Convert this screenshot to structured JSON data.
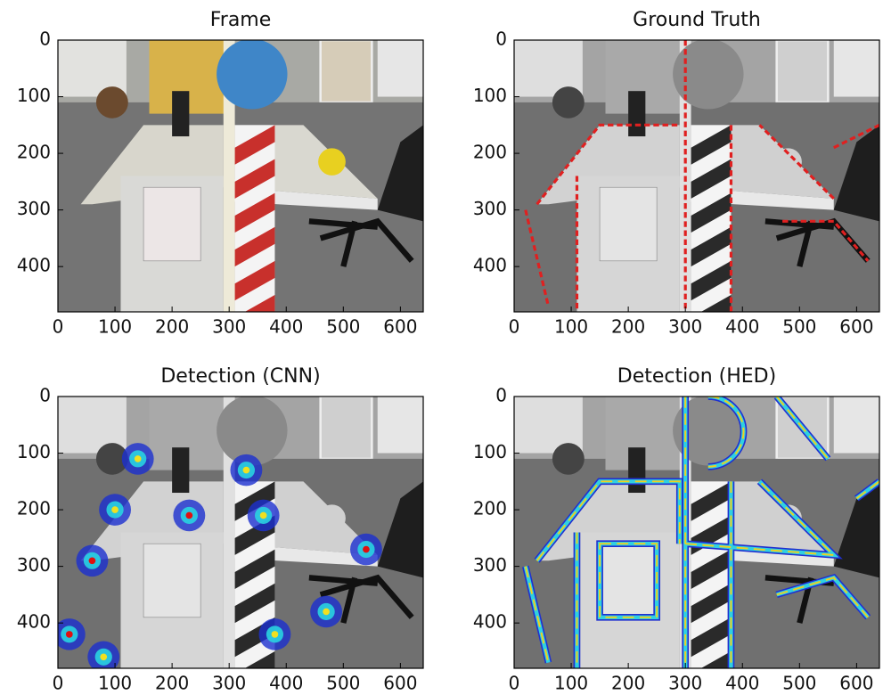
{
  "chart_data": [
    {
      "type": "image",
      "title": "Frame",
      "style": "color",
      "xlim": [
        0,
        640
      ],
      "ylim": [
        480,
        0
      ],
      "xticks": [
        0,
        100,
        200,
        300,
        400,
        500,
        600
      ],
      "yticks": [
        0,
        100,
        200,
        300,
        400
      ]
    },
    {
      "type": "image",
      "title": "Ground Truth",
      "style": "truth",
      "xlim": [
        0,
        640
      ],
      "ylim": [
        480,
        0
      ],
      "xticks": [
        0,
        100,
        200,
        300,
        400,
        500,
        600
      ],
      "yticks": [
        0,
        100,
        200,
        300,
        400
      ]
    },
    {
      "type": "image",
      "title": "Detection (CNN)",
      "style": "cnn",
      "xlim": [
        0,
        640
      ],
      "ylim": [
        480,
        0
      ],
      "xticks": [
        0,
        100,
        200,
        300,
        400,
        500,
        600
      ],
      "yticks": [
        0,
        100,
        200,
        300,
        400
      ]
    },
    {
      "type": "image",
      "title": "Detection (HED)",
      "style": "hed",
      "xlim": [
        0,
        640
      ],
      "ylim": [
        480,
        0
      ],
      "xticks": [
        0,
        100,
        200,
        300,
        400,
        500,
        600
      ],
      "yticks": [
        0,
        100,
        200,
        300,
        400
      ]
    }
  ]
}
